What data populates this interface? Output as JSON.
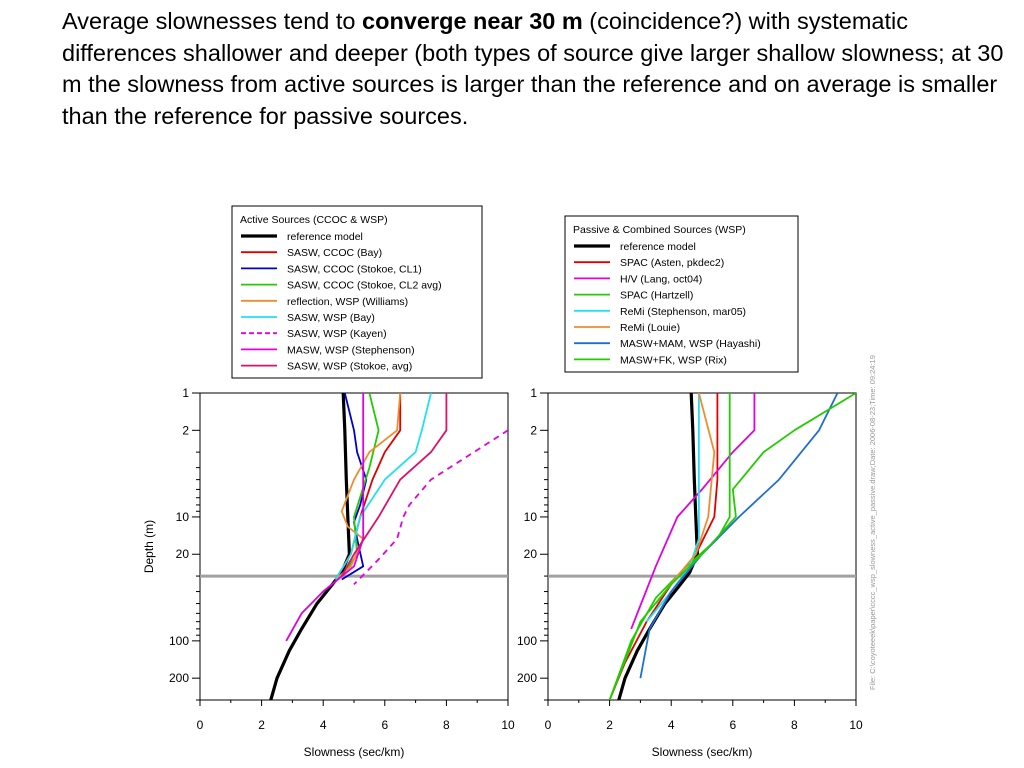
{
  "slide": {
    "text_before": "Average slownesses tend to ",
    "text_bold": "converge near 30 m",
    "text_after": " (coincidence?) with systematic differences shallower and deeper (both types of source give larger shallow slowness; at 30 m the slowness from active sources is larger than the reference and on average is smaller than the reference for passive sources."
  },
  "file_label": "File: C:\\coyoteeek\\paper\\cccc_wsp_slowness_active_passive.draw;Date: 2006-08-23;Time: 09:24:19",
  "chart_data": [
    {
      "type": "line",
      "title": "",
      "xlabel": "Slowness   (sec/km)",
      "ylabel": "Depth (m)",
      "xlim": [
        0,
        10
      ],
      "ylim": [
        1,
        300
      ],
      "yscale": "log",
      "xticks": [
        "0",
        "2",
        "4",
        "6",
        "8",
        "10"
      ],
      "yticks": [
        "1",
        "2",
        "10",
        "20",
        "100",
        "200"
      ],
      "reference_depth": 30,
      "legend_title": "Active  Sources   (CCOC    & WSP)",
      "legend_position": "top",
      "series": [
        {
          "name": "reference   model",
          "color": "#000000",
          "width": 3.2,
          "dash": "",
          "points": [
            [
              4.65,
              1
            ],
            [
              4.7,
              2
            ],
            [
              4.75,
              5
            ],
            [
              4.8,
              10
            ],
            [
              4.85,
              20
            ],
            [
              4.6,
              28
            ],
            [
              4.3,
              35
            ],
            [
              3.8,
              50
            ],
            [
              3.3,
              80
            ],
            [
              2.9,
              120
            ],
            [
              2.5,
              200
            ],
            [
              2.3,
              300
            ]
          ]
        },
        {
          "name": "SASW,   CCOC    (Bay)",
          "color": "#e00000",
          "width": 1.8,
          "dash": "",
          "points": [
            [
              6.5,
              1
            ],
            [
              6.5,
              2
            ],
            [
              6.0,
              3
            ],
            [
              5.6,
              5
            ],
            [
              5.2,
              10
            ],
            [
              4.9,
              20
            ],
            [
              4.4,
              32
            ]
          ]
        },
        {
          "name": "SASW,   CCOC    (Stokoe,    CL1)",
          "color": "#0000cc",
          "width": 1.8,
          "dash": "",
          "points": [
            [
              4.7,
              1
            ],
            [
              5.0,
              2
            ],
            [
              5.1,
              3
            ],
            [
              5.4,
              5
            ],
            [
              5.2,
              8
            ],
            [
              5.0,
              11
            ],
            [
              5.1,
              15
            ],
            [
              5.3,
              25
            ],
            [
              4.6,
              32
            ]
          ]
        },
        {
          "name": "SASW,   CCOC    (Stokoe,    CL2   avg)",
          "color": "#22cc00",
          "width": 1.8,
          "dash": "",
          "points": [
            [
              5.5,
              1
            ],
            [
              5.8,
              2
            ],
            [
              5.5,
              4
            ],
            [
              5.0,
              10
            ],
            [
              5.1,
              20
            ],
            [
              4.6,
              30
            ]
          ]
        },
        {
          "name": "reflection,    WSP   (Williams)",
          "color": "#f08c30",
          "width": 1.8,
          "dash": "",
          "points": [
            [
              6.5,
              1
            ],
            [
              6.4,
              2
            ],
            [
              5.5,
              3
            ],
            [
              5.0,
              5
            ],
            [
              4.6,
              9
            ],
            [
              4.8,
              12
            ],
            [
              5.3,
              15
            ],
            [
              4.9,
              25
            ],
            [
              4.4,
              32
            ]
          ]
        },
        {
          "name": "SASW,   WSP   (Bay)",
          "color": "#22e0f0",
          "width": 1.8,
          "dash": "",
          "points": [
            [
              7.5,
              1
            ],
            [
              7.2,
              2
            ],
            [
              7.0,
              3
            ],
            [
              6.0,
              5
            ],
            [
              5.2,
              10
            ],
            [
              4.9,
              20
            ],
            [
              4.4,
              32
            ]
          ]
        },
        {
          "name": "SASW,   WSP   (Kayen)",
          "color": "#e000e0",
          "width": 1.8,
          "dash": "6,5",
          "points": [
            [
              10,
              2
            ],
            [
              7.5,
              5
            ],
            [
              6.8,
              8
            ],
            [
              6.6,
              10
            ],
            [
              6.4,
              15
            ],
            [
              5.8,
              22
            ],
            [
              5.0,
              35
            ]
          ]
        },
        {
          "name": "MASW,    WSP   (Stephenson)",
          "color": "#e000e0",
          "width": 1.8,
          "dash": "",
          "points": [
            [
              5.3,
              1
            ],
            [
              5.3,
              8
            ],
            [
              5.3,
              15
            ],
            [
              5.0,
              25
            ],
            [
              4.0,
              40
            ],
            [
              3.3,
              60
            ],
            [
              2.8,
              100
            ]
          ]
        },
        {
          "name": "SASW,   WSP   (Stokoe,    avg)",
          "color": "#e0106a",
          "width": 1.8,
          "dash": "",
          "points": [
            [
              8.0,
              1
            ],
            [
              8.0,
              2
            ],
            [
              7.5,
              3
            ],
            [
              6.5,
              5
            ],
            [
              5.8,
              10
            ],
            [
              5.0,
              20
            ],
            [
              4.6,
              30
            ]
          ]
        }
      ]
    },
    {
      "type": "line",
      "title": "",
      "xlabel": "Slowness   (sec/km)",
      "ylabel": "",
      "xlim": [
        0,
        10
      ],
      "ylim": [
        1,
        300
      ],
      "yscale": "log",
      "xticks": [
        "0",
        "2",
        "4",
        "6",
        "8",
        "10"
      ],
      "yticks": [
        "1",
        "2",
        "10",
        "20",
        "100",
        "200"
      ],
      "reference_depth": 30,
      "legend_title": "Passive    & Combined    Sources   (WSP)",
      "legend_position": "top",
      "series": [
        {
          "name": "reference   model",
          "color": "#000000",
          "width": 3.2,
          "dash": "",
          "points": [
            [
              4.65,
              1
            ],
            [
              4.7,
              2
            ],
            [
              4.75,
              5
            ],
            [
              4.8,
              10
            ],
            [
              4.85,
              20
            ],
            [
              4.6,
              28
            ],
            [
              4.3,
              35
            ],
            [
              3.8,
              50
            ],
            [
              3.3,
              80
            ],
            [
              2.9,
              120
            ],
            [
              2.5,
              200
            ],
            [
              2.3,
              300
            ]
          ]
        },
        {
          "name": "SPAC   (Asten,   pkdec2)",
          "color": "#e00000",
          "width": 1.8,
          "dash": "",
          "points": [
            [
              5.5,
              1
            ],
            [
              5.5,
              5
            ],
            [
              5.4,
              10
            ],
            [
              4.8,
              20
            ],
            [
              4.0,
              35
            ],
            [
              3.2,
              70
            ],
            [
              2.5,
              150
            ],
            [
              2.0,
              300
            ]
          ]
        },
        {
          "name": "H/V   (Lang,   oct04)",
          "color": "#e000e0",
          "width": 1.8,
          "dash": "",
          "points": [
            [
              6.7,
              1
            ],
            [
              6.7,
              2
            ],
            [
              6.0,
              3
            ],
            [
              5.0,
              6
            ],
            [
              4.2,
              10
            ],
            [
              3.5,
              25
            ],
            [
              2.7,
              80
            ]
          ]
        },
        {
          "name": "SPAC   (Hartzell)",
          "color": "#22cc00",
          "width": 1.8,
          "dash": "",
          "points": [
            [
              5.9,
              1
            ],
            [
              5.9,
              10
            ],
            [
              5.5,
              15
            ],
            [
              4.5,
              25
            ],
            [
              3.5,
              45
            ],
            [
              2.7,
              100
            ],
            [
              2.0,
              300
            ]
          ]
        },
        {
          "name": "ReMi    (Stephenson,     mar05)",
          "color": "#22e0f0",
          "width": 1.8,
          "dash": "",
          "points": [
            [
              4.9,
              1
            ],
            [
              4.9,
              15
            ],
            [
              4.6,
              25
            ],
            [
              4.0,
              40
            ],
            [
              3.2,
              70
            ]
          ]
        },
        {
          "name": "ReMi    (Louie)",
          "color": "#f08c30",
          "width": 1.8,
          "dash": "",
          "points": [
            [
              4.9,
              1
            ],
            [
              5.4,
              3
            ],
            [
              5.2,
              10
            ],
            [
              4.8,
              20
            ],
            [
              4.2,
              30
            ],
            [
              3.5,
              50
            ]
          ]
        },
        {
          "name": "MASW+MAM,       WSP    (Hayashi)",
          "color": "#1f6fd0",
          "width": 1.8,
          "dash": "",
          "points": [
            [
              9.4,
              1
            ],
            [
              8.8,
              2
            ],
            [
              7.5,
              5
            ],
            [
              6.2,
              10
            ],
            [
              5.0,
              20
            ],
            [
              4.0,
              40
            ],
            [
              3.3,
              80
            ],
            [
              3.0,
              200
            ]
          ]
        },
        {
          "name": "MASW+FK,       WSP    (Rix)",
          "color": "#22cc00",
          "width": 1.8,
          "dash": "",
          "points": [
            [
              10,
              1
            ],
            [
              8.0,
              2
            ],
            [
              7.0,
              3
            ],
            [
              6.0,
              6
            ],
            [
              6.1,
              10
            ],
            [
              5.0,
              20
            ],
            [
              4.0,
              35
            ],
            [
              3.0,
              70
            ],
            [
              2.0,
              300
            ]
          ]
        }
      ]
    }
  ]
}
